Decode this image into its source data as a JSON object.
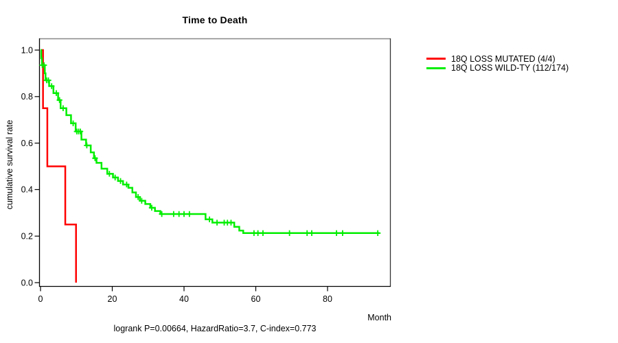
{
  "title": "Time to Death",
  "caption": "logrank P=0.00664, HazardRatio=3.7, C-index=0.773",
  "axes": {
    "ylabel": "cumulative survival rate",
    "xlabel": "Month",
    "y_ticks": [
      "0.0",
      "0.2",
      "0.4",
      "0.6",
      "0.8",
      "1.0"
    ],
    "x_ticks": [
      "0",
      "20",
      "40",
      "60",
      "80"
    ]
  },
  "legend": {
    "items": [
      {
        "label": "18Q LOSS MUTATED (4/4)",
        "color": "#ff0000"
      },
      {
        "label": "18Q LOSS WILD-TY (112/174)",
        "color": "#00ee00"
      }
    ]
  },
  "colors": {
    "mutated": "#ff0000",
    "wildtype": "#00ee00",
    "axis": "#000000",
    "box_top": "#888888",
    "box_right": "#333333"
  },
  "chart_data": {
    "type": "line",
    "subtype": "kaplan-meier-step",
    "title": "Time to Death",
    "xlabel": "Month",
    "ylabel": "cumulative survival rate",
    "xlim": [
      0,
      97.5
    ],
    "ylim": [
      0.0,
      1.0
    ],
    "x_tick_values": [
      0,
      20,
      40,
      60,
      80
    ],
    "y_tick_values": [
      0.0,
      0.2,
      0.4,
      0.6,
      0.8,
      1.0
    ],
    "grid": false,
    "legend_position": "right-outside",
    "annotation": "logrank P=0.00664, HazardRatio=3.7, C-index=0.773",
    "series": [
      {
        "name": "18Q LOSS MUTATED (4/4)",
        "color": "#ff0000",
        "n": 4,
        "events": 4,
        "start": [
          0,
          1.0
        ],
        "steps": [
          [
            0.7,
            0.75
          ],
          [
            1.9,
            0.5
          ],
          [
            6.9,
            0.25
          ],
          [
            9.9,
            0.0
          ]
        ],
        "end_time": 9.9,
        "censors": []
      },
      {
        "name": "18Q LOSS WILD-TY (112/174)",
        "color": "#00ee00",
        "n": 174,
        "events": 112,
        "start": [
          0,
          1.0
        ],
        "steps": [
          [
            0.2,
            0.965
          ],
          [
            0.4,
            0.935
          ],
          [
            1.2,
            0.9
          ],
          [
            1.4,
            0.87
          ],
          [
            2.4,
            0.845
          ],
          [
            3.6,
            0.815
          ],
          [
            4.9,
            0.785
          ],
          [
            5.6,
            0.75
          ],
          [
            7.2,
            0.72
          ],
          [
            8.5,
            0.685
          ],
          [
            9.8,
            0.65
          ],
          [
            11.4,
            0.615
          ],
          [
            12.7,
            0.59
          ],
          [
            14.0,
            0.56
          ],
          [
            14.9,
            0.535
          ],
          [
            15.6,
            0.515
          ],
          [
            17.0,
            0.49
          ],
          [
            18.6,
            0.468
          ],
          [
            20.2,
            0.452
          ],
          [
            21.6,
            0.437
          ],
          [
            23.0,
            0.422
          ],
          [
            24.5,
            0.408
          ],
          [
            25.6,
            0.388
          ],
          [
            26.6,
            0.368
          ],
          [
            27.7,
            0.352
          ],
          [
            29.2,
            0.338
          ],
          [
            30.6,
            0.322
          ],
          [
            31.9,
            0.308
          ],
          [
            33.4,
            0.295
          ],
          [
            46.0,
            0.272
          ],
          [
            47.9,
            0.258
          ],
          [
            54.0,
            0.24
          ],
          [
            55.4,
            0.224
          ],
          [
            56.5,
            0.213
          ]
        ],
        "end_time": 94.5,
        "censors": [
          [
            0.5,
            0.935
          ],
          [
            1.0,
            0.935
          ],
          [
            1.7,
            0.87
          ],
          [
            2.2,
            0.87
          ],
          [
            3.1,
            0.845
          ],
          [
            4.4,
            0.815
          ],
          [
            5.3,
            0.785
          ],
          [
            6.3,
            0.75
          ],
          [
            9.1,
            0.685
          ],
          [
            10.1,
            0.65
          ],
          [
            10.6,
            0.65
          ],
          [
            11.1,
            0.65
          ],
          [
            12.9,
            0.59
          ],
          [
            15.2,
            0.535
          ],
          [
            19.2,
            0.468
          ],
          [
            20.8,
            0.452
          ],
          [
            22.3,
            0.437
          ],
          [
            24.0,
            0.422
          ],
          [
            27.2,
            0.368
          ],
          [
            28.2,
            0.352
          ],
          [
            31.0,
            0.322
          ],
          [
            33.8,
            0.295
          ],
          [
            37.1,
            0.295
          ],
          [
            38.6,
            0.295
          ],
          [
            40.0,
            0.295
          ],
          [
            41.5,
            0.295
          ],
          [
            47.1,
            0.272
          ],
          [
            49.2,
            0.258
          ],
          [
            51.2,
            0.258
          ],
          [
            52.1,
            0.258
          ],
          [
            53.1,
            0.258
          ],
          [
            59.5,
            0.213
          ],
          [
            60.6,
            0.213
          ],
          [
            62.0,
            0.213
          ],
          [
            69.4,
            0.213
          ],
          [
            74.3,
            0.213
          ],
          [
            75.6,
            0.213
          ],
          [
            82.5,
            0.213
          ],
          [
            84.2,
            0.213
          ],
          [
            94.0,
            0.213
          ]
        ]
      }
    ]
  }
}
